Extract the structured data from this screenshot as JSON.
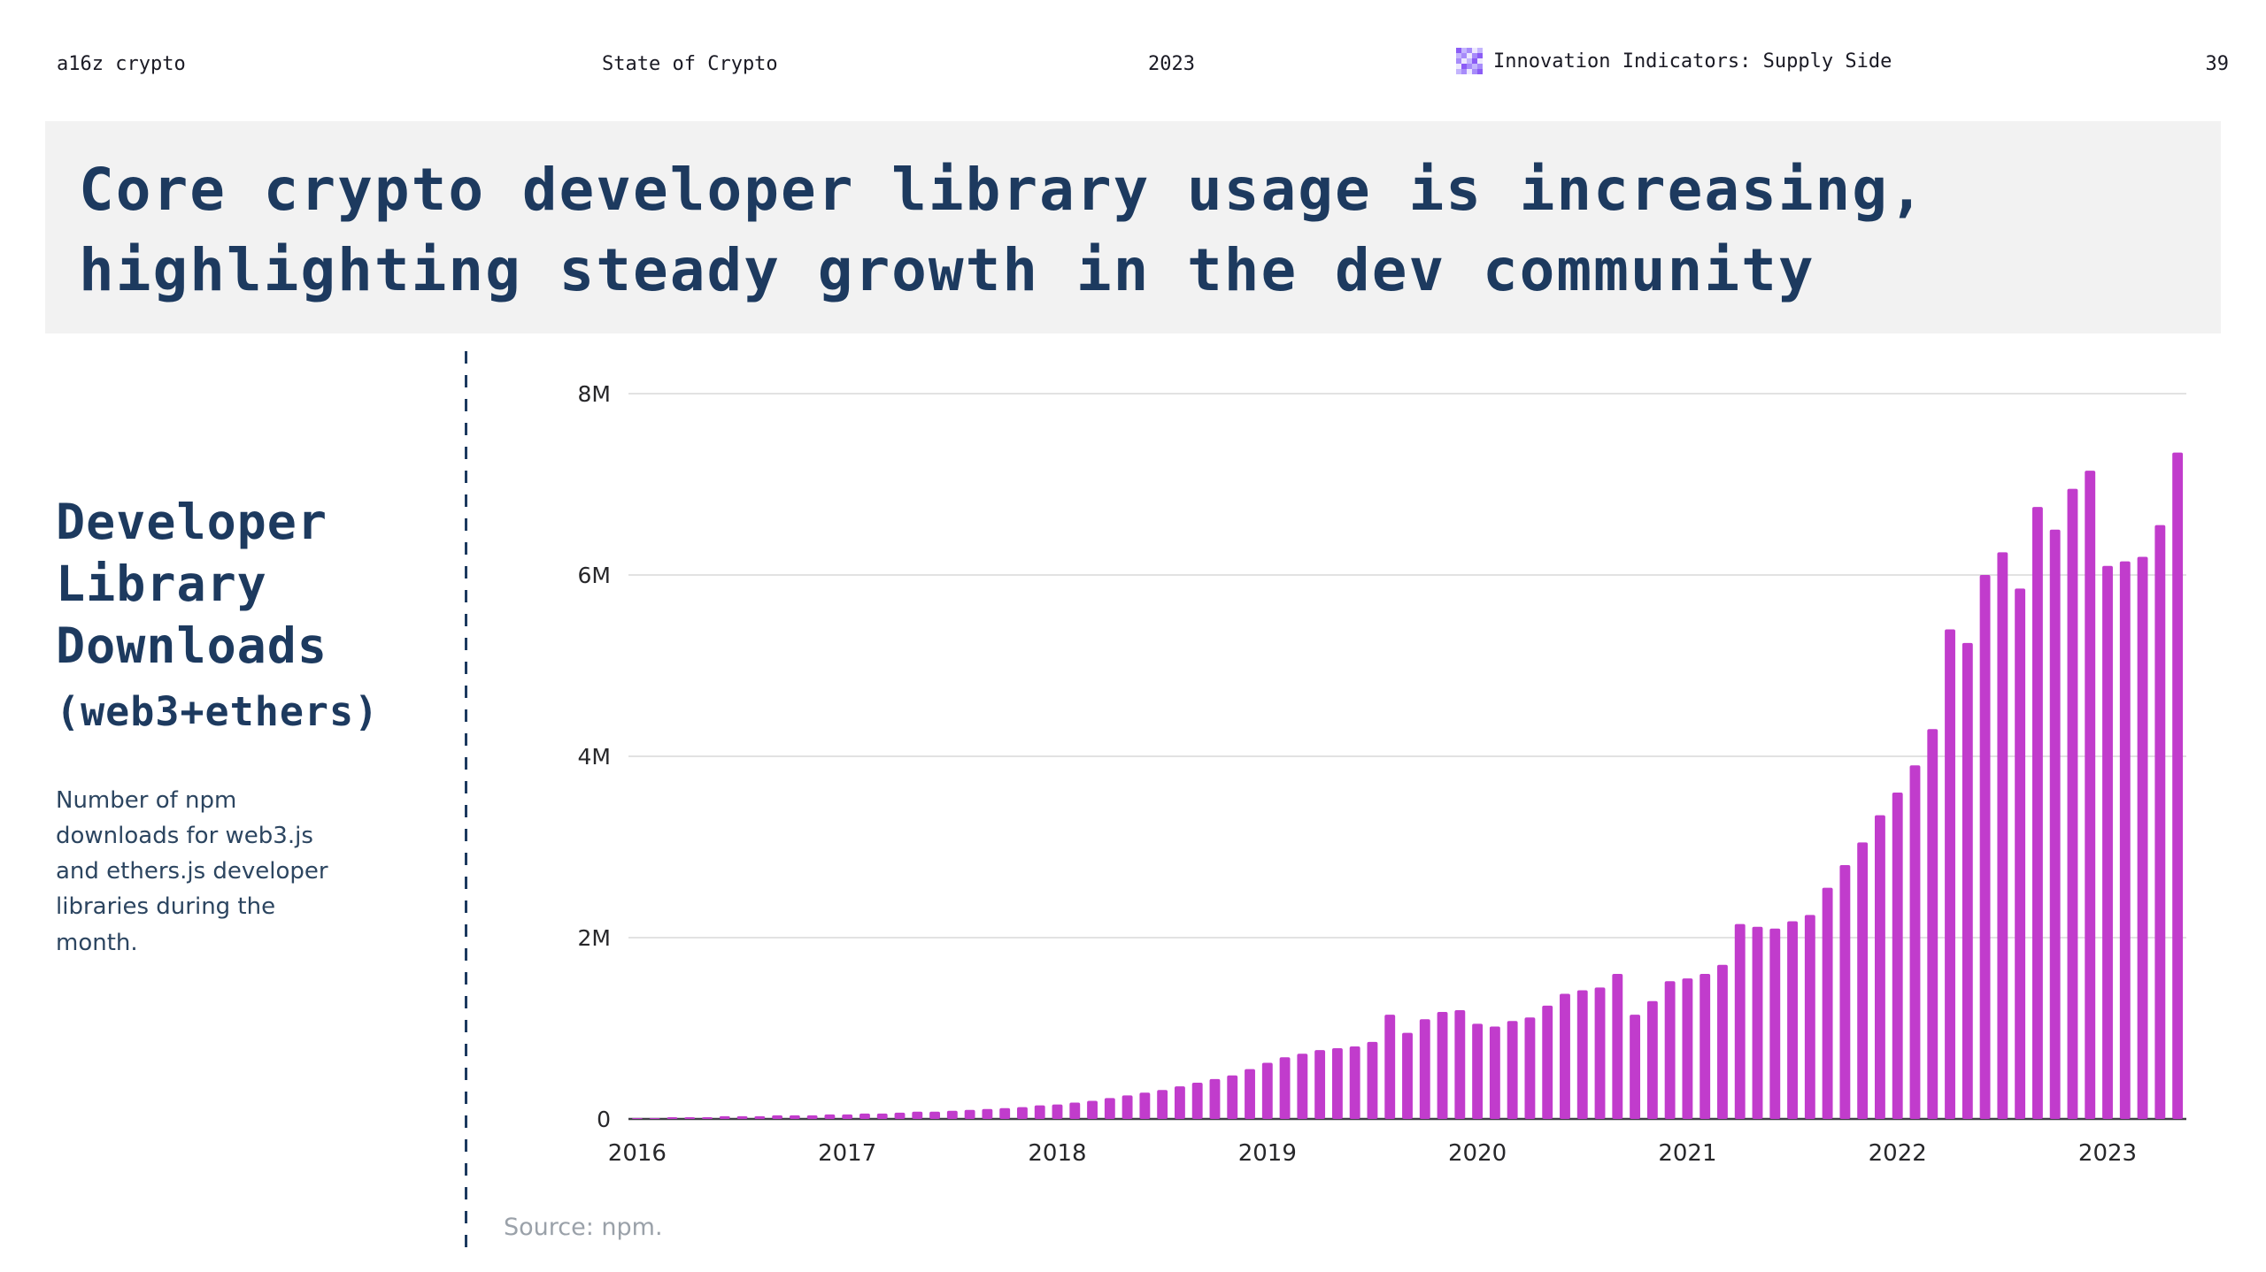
{
  "header": {
    "brand": "a16z crypto",
    "report": "State of Crypto",
    "year": "2023",
    "section": "Innovation Indicators: Supply Side",
    "section_icon": "pixel-mosaic-icon",
    "page_number": "39"
  },
  "title": {
    "line1": "Core crypto developer library usage is increasing,",
    "line2": "highlighting steady growth in the dev community"
  },
  "sidebar": {
    "heading_lines": [
      "Developer",
      "Library",
      "Downloads"
    ],
    "subheading": "(web3+ethers)",
    "description": "Number of npm downloads for web3.js and ethers.js developer libraries during the month."
  },
  "footer": {
    "source": "Source: npm."
  },
  "colors": {
    "accent_bar": "#c13ccc",
    "heading_navy": "#1d3a5f",
    "band_bg": "#f2f2f2",
    "grid": "#d8d8d8",
    "axis": "#3f3f46",
    "source_gray": "#9aa1a9"
  },
  "chart_data": {
    "type": "bar",
    "title": "Developer Library Downloads (web3+ethers)",
    "subtitle": "Number of npm downloads for web3.js and ethers.js developer libraries during the month",
    "xlabel": "",
    "ylabel": "",
    "unit": "millions of downloads per month",
    "grid": true,
    "legend": "none",
    "bar_color": "#c13ccc",
    "ylim": [
      0,
      8
    ],
    "yticks": [
      {
        "value": 0,
        "label": "0"
      },
      {
        "value": 2,
        "label": "2M"
      },
      {
        "value": 4,
        "label": "4M"
      },
      {
        "value": 6,
        "label": "6M"
      },
      {
        "value": 8,
        "label": "8M"
      }
    ],
    "xticks": [
      {
        "index": 0,
        "label": "2016"
      },
      {
        "index": 12,
        "label": "2017"
      },
      {
        "index": 24,
        "label": "2018"
      },
      {
        "index": 36,
        "label": "2019"
      },
      {
        "index": 48,
        "label": "2020"
      },
      {
        "index": 60,
        "label": "2021"
      },
      {
        "index": 72,
        "label": "2022"
      },
      {
        "index": 84,
        "label": "2023"
      }
    ],
    "x": [
      "2016-01",
      "2016-02",
      "2016-03",
      "2016-04",
      "2016-05",
      "2016-06",
      "2016-07",
      "2016-08",
      "2016-09",
      "2016-10",
      "2016-11",
      "2016-12",
      "2017-01",
      "2017-02",
      "2017-03",
      "2017-04",
      "2017-05",
      "2017-06",
      "2017-07",
      "2017-08",
      "2017-09",
      "2017-10",
      "2017-11",
      "2017-12",
      "2018-01",
      "2018-02",
      "2018-03",
      "2018-04",
      "2018-05",
      "2018-06",
      "2018-07",
      "2018-08",
      "2018-09",
      "2018-10",
      "2018-11",
      "2018-12",
      "2019-01",
      "2019-02",
      "2019-03",
      "2019-04",
      "2019-05",
      "2019-06",
      "2019-07",
      "2019-08",
      "2019-09",
      "2019-10",
      "2019-11",
      "2019-12",
      "2020-01",
      "2020-02",
      "2020-03",
      "2020-04",
      "2020-05",
      "2020-06",
      "2020-07",
      "2020-08",
      "2020-09",
      "2020-10",
      "2020-11",
      "2020-12",
      "2021-01",
      "2021-02",
      "2021-03",
      "2021-04",
      "2021-05",
      "2021-06",
      "2021-07",
      "2021-08",
      "2021-09",
      "2021-10",
      "2021-11",
      "2021-12",
      "2022-01",
      "2022-02",
      "2022-03",
      "2022-04",
      "2022-05",
      "2022-06",
      "2022-07",
      "2022-08",
      "2022-09",
      "2022-10",
      "2022-11",
      "2022-12",
      "2023-01",
      "2023-02",
      "2023-03",
      "2023-04",
      "2023-05"
    ],
    "values": [
      0.01,
      0.01,
      0.02,
      0.02,
      0.02,
      0.03,
      0.03,
      0.03,
      0.04,
      0.04,
      0.04,
      0.05,
      0.05,
      0.06,
      0.06,
      0.07,
      0.08,
      0.08,
      0.09,
      0.1,
      0.11,
      0.12,
      0.13,
      0.15,
      0.16,
      0.18,
      0.2,
      0.23,
      0.26,
      0.29,
      0.32,
      0.36,
      0.4,
      0.44,
      0.48,
      0.55,
      0.62,
      0.68,
      0.72,
      0.76,
      0.78,
      0.8,
      0.85,
      1.15,
      0.95,
      1.1,
      1.18,
      1.2,
      1.05,
      1.02,
      1.08,
      1.12,
      1.25,
      1.38,
      1.42,
      1.45,
      1.6,
      1.15,
      1.3,
      1.52,
      1.55,
      1.6,
      1.7,
      2.15,
      2.12,
      2.1,
      2.18,
      2.25,
      2.55,
      2.8,
      3.05,
      3.35,
      3.6,
      3.9,
      4.3,
      5.4,
      5.25,
      6.0,
      6.25,
      5.85,
      6.75,
      6.5,
      6.95,
      7.15,
      6.1,
      6.15,
      6.2,
      6.55,
      7.35
    ]
  }
}
